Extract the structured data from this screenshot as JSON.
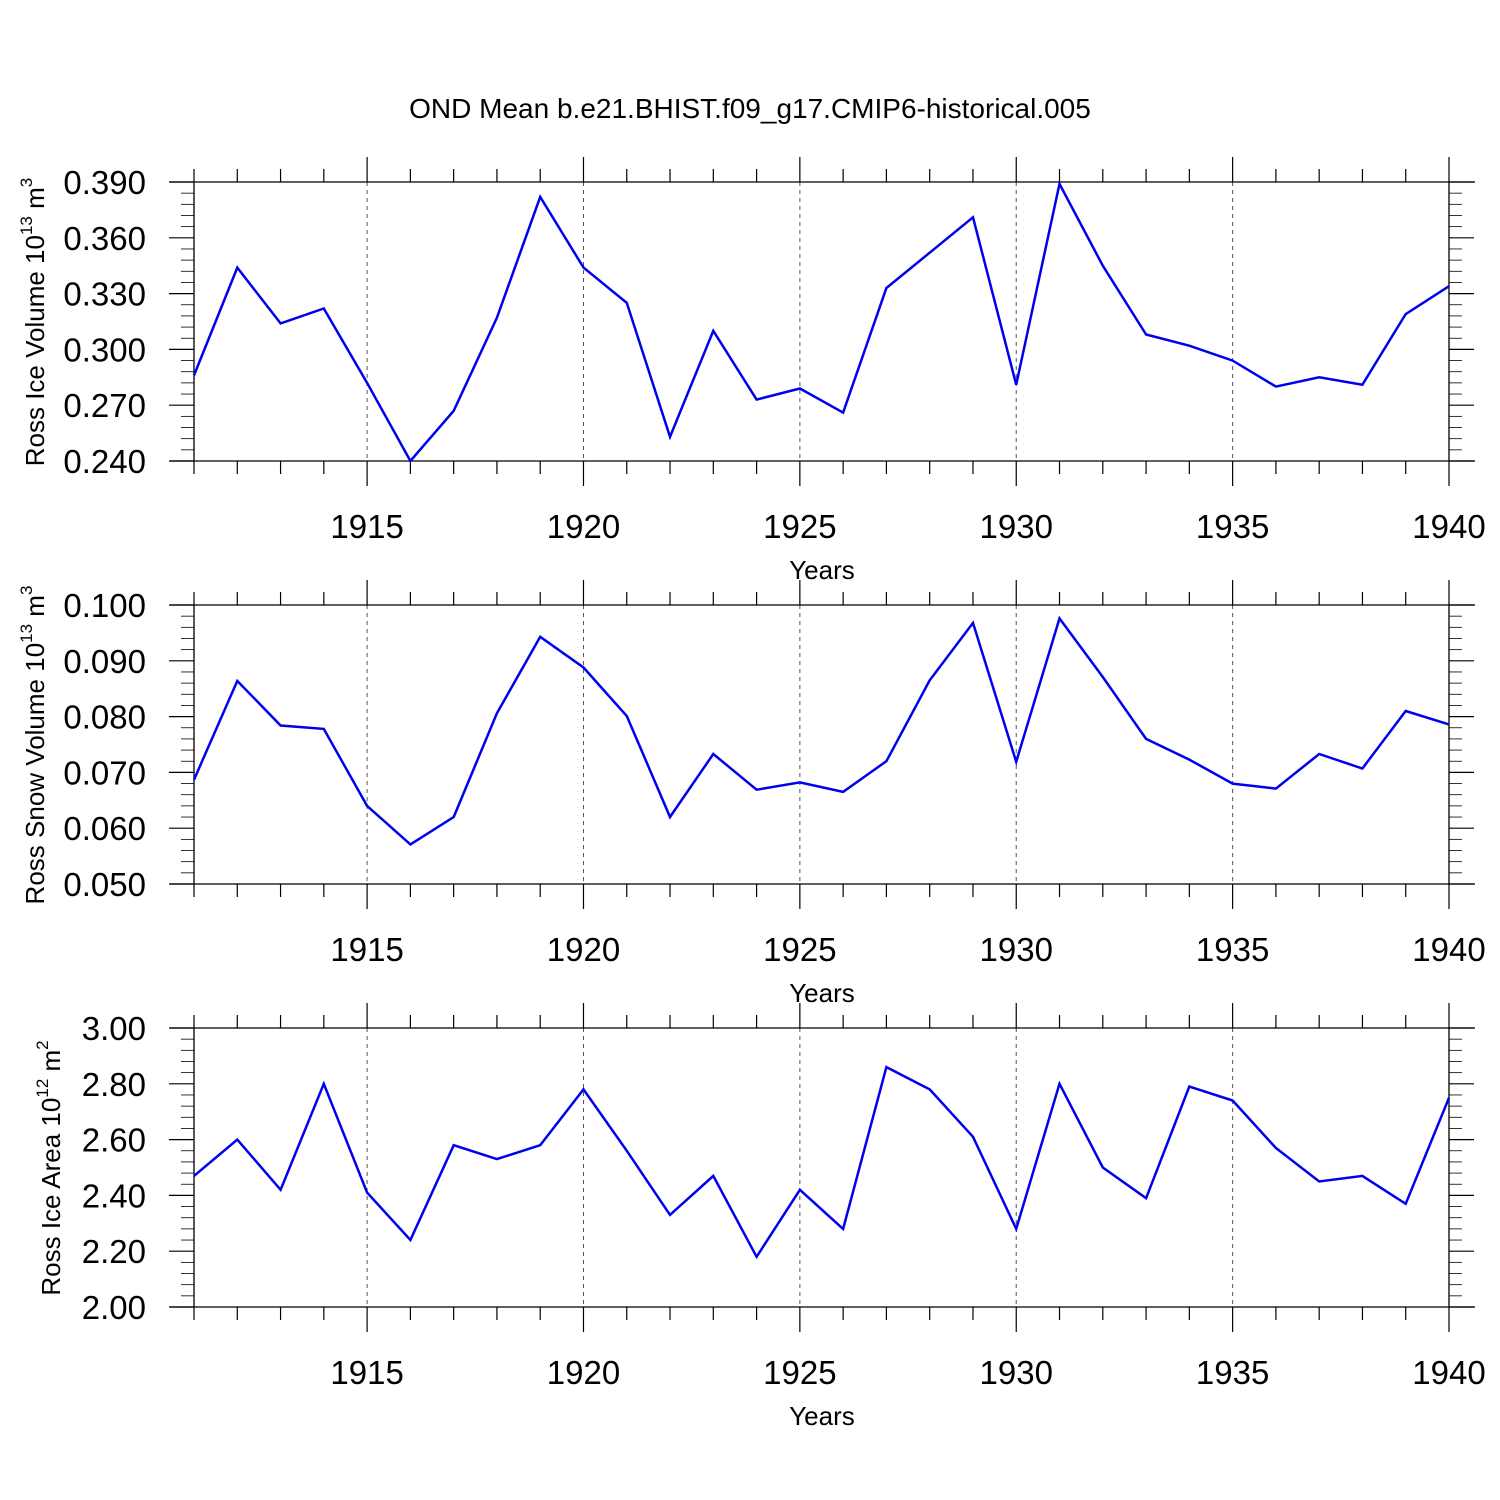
{
  "figure": {
    "title": "OND Mean b.e21.BHIST.f09_g17.CMIP6-historical.005"
  },
  "chart_data": [
    {
      "type": "line",
      "xlabel": "Years",
      "ylabel": "Ross Ice Volume 10",
      "ylabel_exp": "13",
      "ylabel_unit": " m",
      "ylabel_unit_exp": "3",
      "xlim": [
        1911,
        1940
      ],
      "ylim": [
        0.24,
        0.39
      ],
      "yticks": [
        "0.240",
        "0.270",
        "0.300",
        "0.330",
        "0.360",
        "0.390"
      ],
      "xticks": [
        "1915",
        "1920",
        "1925",
        "1930",
        "1935",
        "1940"
      ],
      "grid": "x-dashed",
      "series_color": "#0000ee",
      "x": [
        1911,
        1912,
        1913,
        1914,
        1915,
        1916,
        1917,
        1918,
        1919,
        1920,
        1921,
        1922,
        1923,
        1924,
        1925,
        1926,
        1927,
        1928,
        1929,
        1930,
        1931,
        1932,
        1933,
        1934,
        1935,
        1936,
        1937,
        1938,
        1939,
        1940
      ],
      "values": [
        0.286,
        0.344,
        0.314,
        0.322,
        0.282,
        0.24,
        0.267,
        0.317,
        0.382,
        0.344,
        0.325,
        0.253,
        0.31,
        0.273,
        0.279,
        0.266,
        0.333,
        0.352,
        0.371,
        0.281,
        0.389,
        0.345,
        0.308,
        0.302,
        0.294,
        0.28,
        0.285,
        0.281,
        0.319,
        0.334
      ]
    },
    {
      "type": "line",
      "xlabel": "Years",
      "ylabel": "Ross Snow Volume 10",
      "ylabel_exp": "13",
      "ylabel_unit": " m",
      "ylabel_unit_exp": "3",
      "xlim": [
        1911,
        1940
      ],
      "ylim": [
        0.05,
        0.1
      ],
      "yticks": [
        "0.050",
        "0.060",
        "0.070",
        "0.080",
        "0.090",
        "0.100"
      ],
      "xticks": [
        "1915",
        "1920",
        "1925",
        "1930",
        "1935",
        "1940"
      ],
      "grid": "x-dashed",
      "series_color": "#0000ee",
      "x": [
        1911,
        1912,
        1913,
        1914,
        1915,
        1916,
        1917,
        1918,
        1919,
        1920,
        1921,
        1922,
        1923,
        1924,
        1925,
        1926,
        1927,
        1928,
        1929,
        1930,
        1931,
        1932,
        1933,
        1934,
        1935,
        1936,
        1937,
        1938,
        1939,
        1940
      ],
      "values": [
        0.0687,
        0.0864,
        0.0784,
        0.0778,
        0.064,
        0.0571,
        0.062,
        0.0806,
        0.0943,
        0.0888,
        0.0801,
        0.062,
        0.0733,
        0.0669,
        0.0682,
        0.0665,
        0.072,
        0.0865,
        0.0968,
        0.0719,
        0.0976,
        0.0871,
        0.076,
        0.0723,
        0.068,
        0.0671,
        0.0733,
        0.0707,
        0.081,
        0.0786
      ]
    },
    {
      "type": "line",
      "xlabel": "Years",
      "ylabel": "Ross Ice Area 10",
      "ylabel_exp": "12",
      "ylabel_unit": " m",
      "ylabel_unit_exp": "2",
      "xlim": [
        1911,
        1940
      ],
      "ylim": [
        2.0,
        3.0
      ],
      "yticks": [
        "2.00",
        "2.20",
        "2.40",
        "2.60",
        "2.80",
        "3.00"
      ],
      "xticks": [
        "1915",
        "1920",
        "1925",
        "1930",
        "1935",
        "1940"
      ],
      "grid": "x-dashed",
      "series_color": "#0000ee",
      "x": [
        1911,
        1912,
        1913,
        1914,
        1915,
        1916,
        1917,
        1918,
        1919,
        1920,
        1921,
        1922,
        1923,
        1924,
        1925,
        1926,
        1927,
        1928,
        1929,
        1930,
        1931,
        1932,
        1933,
        1934,
        1935,
        1936,
        1937,
        1938,
        1939,
        1940
      ],
      "values": [
        2.47,
        2.6,
        2.42,
        2.8,
        2.41,
        2.24,
        2.58,
        2.53,
        2.58,
        2.78,
        2.56,
        2.33,
        2.47,
        2.18,
        2.42,
        2.28,
        2.86,
        2.78,
        2.61,
        2.28,
        2.8,
        2.5,
        2.39,
        2.79,
        2.74,
        2.57,
        2.45,
        2.47,
        2.37,
        2.75
      ]
    }
  ]
}
